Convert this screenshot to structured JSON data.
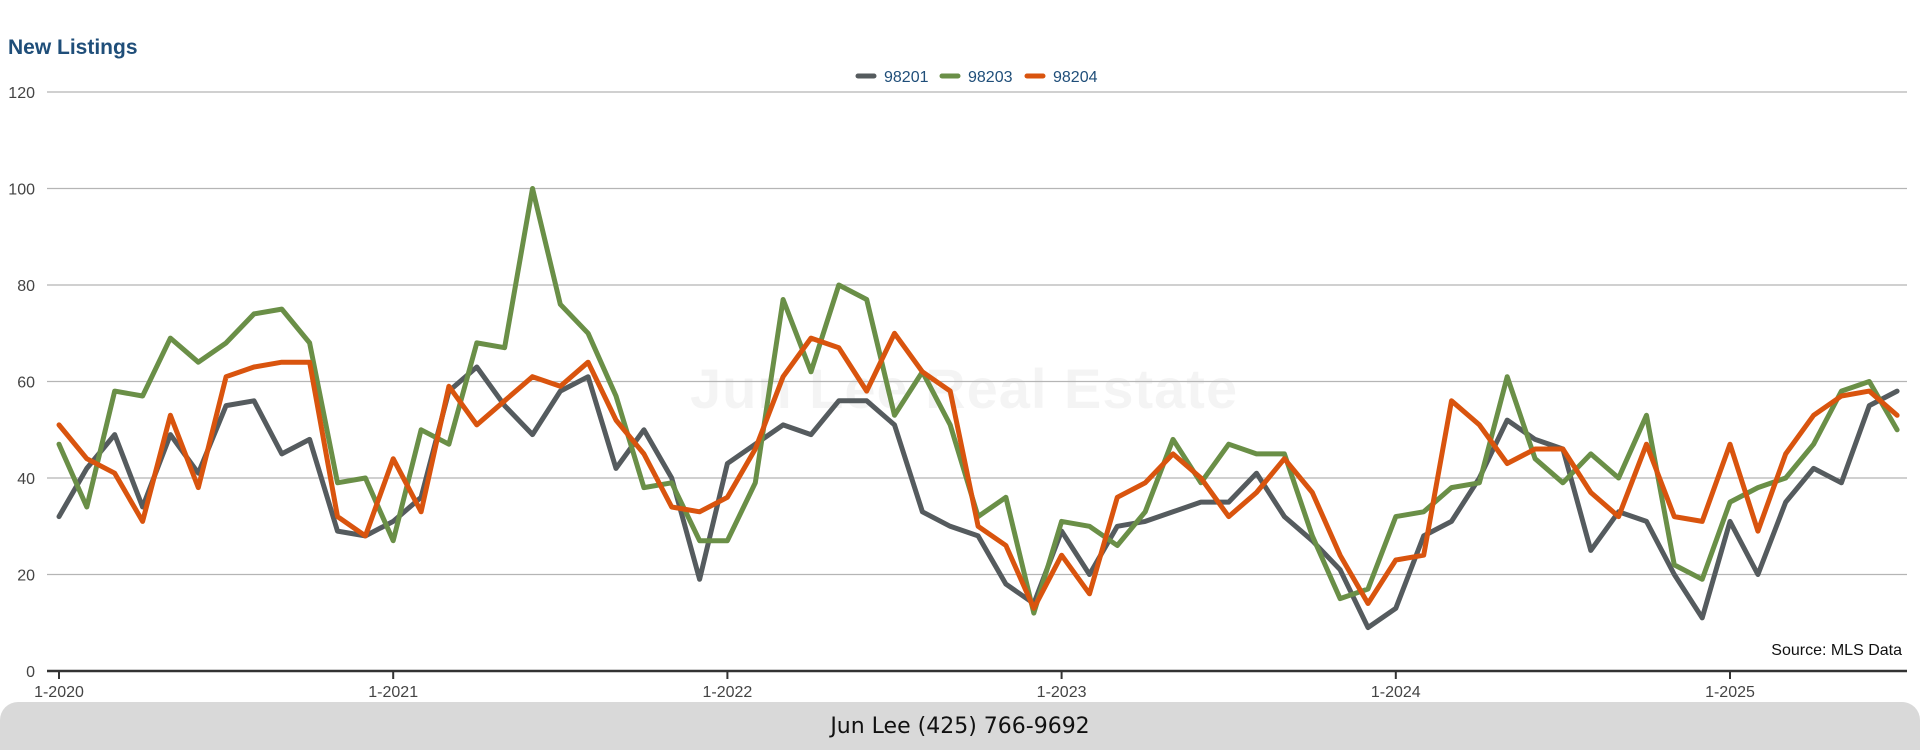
{
  "chart_data": {
    "type": "line",
    "title": "New Listings",
    "xlabel": "",
    "ylabel": "",
    "ylim": [
      0,
      120
    ],
    "yticks": [
      0,
      20,
      40,
      60,
      80,
      100,
      120
    ],
    "xticks": [
      "1-2020",
      "1-2021",
      "1-2022",
      "1-2023",
      "1-2024",
      "1-2025"
    ],
    "x_start": "1-2020",
    "x_end": "7-2025",
    "grid": true,
    "legend_position": "top-center",
    "series": [
      {
        "name": "98201",
        "color": "#555b5e",
        "values": [
          32,
          42,
          49,
          34,
          49,
          41,
          55,
          56,
          45,
          48,
          29,
          28,
          31,
          36,
          58,
          63,
          55,
          49,
          58,
          61,
          42,
          50,
          40,
          19,
          43,
          47,
          51,
          49,
          56,
          56,
          51,
          33,
          30,
          28,
          18,
          14,
          29,
          20,
          30,
          31,
          33,
          35,
          35,
          41,
          32,
          27,
          21,
          9,
          13,
          28,
          31,
          40,
          52,
          48,
          46,
          25,
          33,
          31,
          20,
          11,
          31,
          20,
          35,
          42,
          39,
          55,
          58
        ]
      },
      {
        "name": "98203",
        "color": "#6a8f47",
        "values": [
          47,
          34,
          58,
          57,
          69,
          64,
          68,
          74,
          75,
          68,
          39,
          40,
          27,
          50,
          47,
          68,
          67,
          100,
          76,
          70,
          57,
          38,
          39,
          27,
          27,
          39,
          77,
          62,
          80,
          77,
          53,
          62,
          51,
          32,
          36,
          12,
          31,
          30,
          26,
          33,
          48,
          39,
          47,
          45,
          45,
          28,
          15,
          17,
          32,
          33,
          38,
          39,
          61,
          44,
          39,
          45,
          40,
          53,
          22,
          19,
          35,
          38,
          40,
          47,
          58,
          60,
          50
        ]
      },
      {
        "name": "98204",
        "color": "#d9540e",
        "values": [
          51,
          44,
          41,
          31,
          53,
          38,
          61,
          63,
          64,
          64,
          32,
          28,
          44,
          33,
          59,
          51,
          56,
          61,
          59,
          64,
          52,
          45,
          34,
          33,
          36,
          46,
          61,
          69,
          67,
          58,
          70,
          62,
          58,
          30,
          26,
          13,
          24,
          16,
          36,
          39,
          45,
          40,
          32,
          37,
          44,
          37,
          24,
          14,
          23,
          24,
          56,
          51,
          43,
          46,
          46,
          37,
          32,
          47,
          32,
          31,
          47,
          29,
          45,
          53,
          57,
          58,
          53
        ]
      }
    ]
  },
  "watermark": "Jun Lee Real Estate",
  "source": "Source: MLS Data",
  "footer": "Jun Lee (425) 766-9692"
}
